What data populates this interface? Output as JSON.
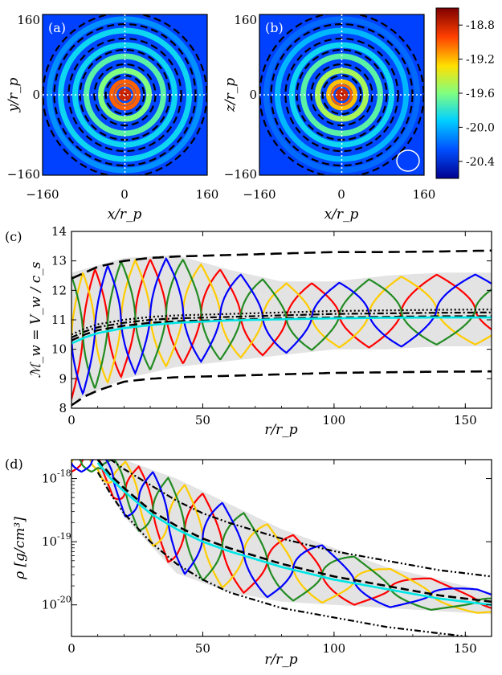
{
  "panels": {
    "a": {
      "label": "(a)",
      "xlabel": "x/r_p",
      "ylabel": "y/r_p"
    },
    "b": {
      "label": "(b)",
      "xlabel": "x/r_p",
      "ylabel": "z/r_p"
    },
    "c": {
      "label": "(c)",
      "xlabel": "r/r_p",
      "ylabel": "ℳ_w = V_w / c_s"
    },
    "d": {
      "label": "(d)",
      "xlabel": "r/r_p",
      "ylabel": "ρ [g/cm³]"
    }
  },
  "map_ticks": {
    "x": [
      "−160",
      "0",
      "160"
    ],
    "y": [
      "160",
      "0",
      "−160"
    ]
  },
  "colorbar": {
    "ticks": [
      "-18.8",
      "-19.2",
      "-19.6",
      "-20.0",
      "-20.4"
    ],
    "values": [
      -18.8,
      -19.2,
      -19.6,
      -20.0,
      -20.4
    ],
    "range": [
      -20.6,
      -18.6
    ],
    "colors": [
      "#00008f",
      "#0050ff",
      "#00d0ff",
      "#80ff80",
      "#ffe000",
      "#ff4000",
      "#800000"
    ]
  },
  "chart_data": [
    {
      "panel": "a",
      "type": "heatmap",
      "xlim": [
        -160,
        160
      ],
      "ylim": [
        -160,
        160
      ],
      "ring_radii": [
        28,
        50,
        78,
        100,
        128,
        150
      ],
      "ring_levels": [
        -19.0,
        -19.6,
        -19.7,
        -19.9,
        -19.9,
        -20.1
      ],
      "core_level": -18.8
    },
    {
      "panel": "b",
      "type": "heatmap",
      "xlim": [
        -160,
        160
      ],
      "ylim": [
        -160,
        160
      ],
      "ring_radii": [
        28,
        50,
        78,
        100,
        128,
        150
      ],
      "ring_levels": [
        -19.2,
        -19.5,
        -19.7,
        -19.9,
        -20.0,
        -20.2
      ],
      "core_level": -18.8
    },
    {
      "panel": "c",
      "type": "line",
      "xlim": [
        0,
        160
      ],
      "ylim": [
        8,
        14
      ],
      "xticks": [
        0,
        50,
        100,
        150
      ],
      "yticks": [
        8,
        9,
        10,
        11,
        12,
        13,
        14
      ],
      "envelope": {
        "r": [
          0,
          20,
          40,
          60,
          80,
          100,
          120,
          140,
          160
        ],
        "lower": [
          8.2,
          9.0,
          9.4,
          9.6,
          9.8,
          10.0,
          10.0,
          10.1,
          10.1
        ],
        "upper": [
          12.6,
          13.1,
          13.2,
          12.7,
          12.3,
          12.3,
          12.5,
          12.6,
          12.6
        ]
      },
      "series": [
        {
          "color": "#ff0000",
          "phase": 0.0
        },
        {
          "color": "#ffcc00",
          "phase": 0.25
        },
        {
          "color": "#228b22",
          "phase": 0.5
        },
        {
          "color": "#0000ff",
          "phase": 0.75
        }
      ],
      "black_curves": {
        "r": [
          0,
          5,
          10,
          20,
          30,
          40,
          60,
          80,
          100,
          120,
          140,
          160
        ],
        "upper_dashed": [
          12.4,
          12.6,
          12.8,
          13.0,
          13.1,
          13.15,
          13.2,
          13.25,
          13.3,
          13.3,
          13.32,
          13.35
        ],
        "lower_dashed": [
          8.1,
          8.4,
          8.6,
          8.9,
          9.0,
          9.05,
          9.1,
          9.15,
          9.2,
          9.22,
          9.24,
          9.25
        ],
        "mean_dashed": [
          10.3,
          10.5,
          10.65,
          10.8,
          10.9,
          10.95,
          11.0,
          11.05,
          11.08,
          11.1,
          11.12,
          11.12
        ],
        "mean_dotdash": [
          10.4,
          10.6,
          10.75,
          10.9,
          11.0,
          11.05,
          11.1,
          11.15,
          11.2,
          11.22,
          11.24,
          11.25
        ],
        "mean_dotted": [
          10.5,
          10.7,
          10.85,
          11.0,
          11.1,
          11.15,
          11.2,
          11.25,
          11.3,
          11.32,
          11.34,
          11.35
        ],
        "cyan": [
          10.2,
          10.4,
          10.55,
          10.72,
          10.82,
          10.9,
          10.98,
          11.02,
          11.05,
          11.07,
          11.08,
          11.08
        ]
      }
    },
    {
      "panel": "d",
      "type": "line",
      "xlim": [
        0,
        160
      ],
      "ylog10": [
        -20.5,
        -17.7
      ],
      "xticks": [
        0,
        50,
        100,
        150
      ],
      "ytick_exponents": [
        -18,
        -19,
        -20
      ],
      "envelope": {
        "r": [
          10,
          20,
          40,
          60,
          80,
          100,
          120,
          140,
          160
        ],
        "lower_log": [
          -17.9,
          -18.6,
          -19.5,
          -19.8,
          -19.95,
          -20.0,
          -20.05,
          -20.1,
          -20.15
        ],
        "upper_log": [
          -17.6,
          -17.7,
          -18.0,
          -18.4,
          -18.8,
          -19.1,
          -19.4,
          -19.6,
          -19.8
        ]
      },
      "series": [
        {
          "color": "#ff0000",
          "phase": 0.0
        },
        {
          "color": "#ffcc00",
          "phase": 0.25
        },
        {
          "color": "#228b22",
          "phase": 0.5
        },
        {
          "color": "#0000ff",
          "phase": 0.75
        }
      ],
      "black_curves": {
        "r": [
          10,
          15,
          20,
          30,
          40,
          50,
          60,
          80,
          100,
          120,
          140,
          160
        ],
        "upper_dotdash": [
          -17.5,
          -17.7,
          -17.85,
          -18.1,
          -18.35,
          -18.55,
          -18.7,
          -18.95,
          -19.15,
          -19.3,
          -19.45,
          -19.55
        ],
        "mid_dashed": [
          -17.7,
          -17.95,
          -18.15,
          -18.5,
          -18.75,
          -18.95,
          -19.1,
          -19.35,
          -19.55,
          -19.7,
          -19.85,
          -19.95
        ],
        "cyan": [
          -17.75,
          -18.0,
          -18.2,
          -18.55,
          -18.8,
          -19.0,
          -19.15,
          -19.4,
          -19.6,
          -19.75,
          -19.9,
          -20.0
        ],
        "lower_dotdash": [
          -17.9,
          -18.25,
          -18.55,
          -19.0,
          -19.35,
          -19.6,
          -19.8,
          -20.05,
          -20.2,
          -20.35,
          -20.45,
          -20.55
        ]
      }
    }
  ]
}
